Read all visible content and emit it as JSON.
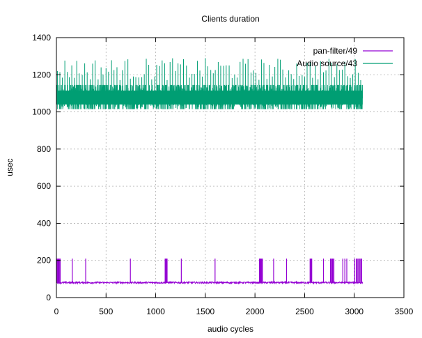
{
  "chart_data": {
    "type": "line",
    "title": "Clients duration",
    "xlabel": "audio cycles",
    "ylabel": "usec",
    "xlim": [
      0,
      3500
    ],
    "ylim": [
      0,
      1400
    ],
    "xticks": [
      0,
      500,
      1000,
      1500,
      2000,
      2500,
      3000,
      3500
    ],
    "yticks": [
      0,
      200,
      400,
      600,
      800,
      1000,
      1200,
      1400
    ],
    "grid": true,
    "legend_position": "top-right",
    "series": [
      {
        "name": "pan-filter/49",
        "color": "#9400d3",
        "x_range": [
          0,
          3085
        ],
        "baseline": 80,
        "noise": [
          76,
          85
        ],
        "spikes_x": [
          5,
          12,
          18,
          25,
          30,
          38,
          160,
          295,
          745,
          1095,
          1100,
          1105,
          1110,
          1115,
          1258,
          1598,
          2045,
          2052,
          2058,
          2063,
          2070,
          2075,
          2188,
          2318,
          2555,
          2562,
          2568,
          2572,
          2690,
          2760,
          2768,
          2778,
          2785,
          2795,
          2885,
          2905,
          2925,
          3005,
          3020,
          3030,
          3040,
          3055,
          3065,
          3075
        ],
        "spike_value": 210
      },
      {
        "name": "Audio source/43",
        "color": "#009e73",
        "x_range": [
          0,
          3085
        ],
        "band": [
          1015,
          1145
        ],
        "spikes_x": [
          10,
          35,
          60,
          85,
          110,
          130,
          155,
          180,
          205,
          230,
          260,
          285,
          310,
          340,
          365,
          390,
          420,
          450,
          470,
          500,
          525,
          555,
          580,
          610,
          640,
          665,
          690,
          720,
          745,
          775,
          800,
          830,
          860,
          885,
          905,
          930,
          960,
          990,
          1010,
          1040,
          1065,
          1090,
          1115,
          1145,
          1170,
          1200,
          1225,
          1250,
          1280,
          1310,
          1340,
          1365,
          1390,
          1420,
          1445,
          1470,
          1500,
          1525,
          1555,
          1580,
          1600,
          1630,
          1655,
          1685,
          1710,
          1740,
          1770,
          1795,
          1820,
          1850,
          1880,
          1905,
          1930,
          1960,
          1985,
          2010,
          2040,
          2065,
          2090,
          2120,
          2145,
          2175,
          2200,
          2230,
          2255,
          2280,
          2310,
          2340,
          2365,
          2390,
          2420,
          2445,
          2475,
          2500,
          2525,
          2555,
          2580,
          2610,
          2635,
          2660,
          2690,
          2715,
          2745,
          2770,
          2800,
          2825,
          2850,
          2880,
          2905,
          2935,
          2960,
          2985,
          3010,
          3040,
          3065
        ],
        "spike_range": [
          1170,
          1290
        ]
      }
    ]
  }
}
